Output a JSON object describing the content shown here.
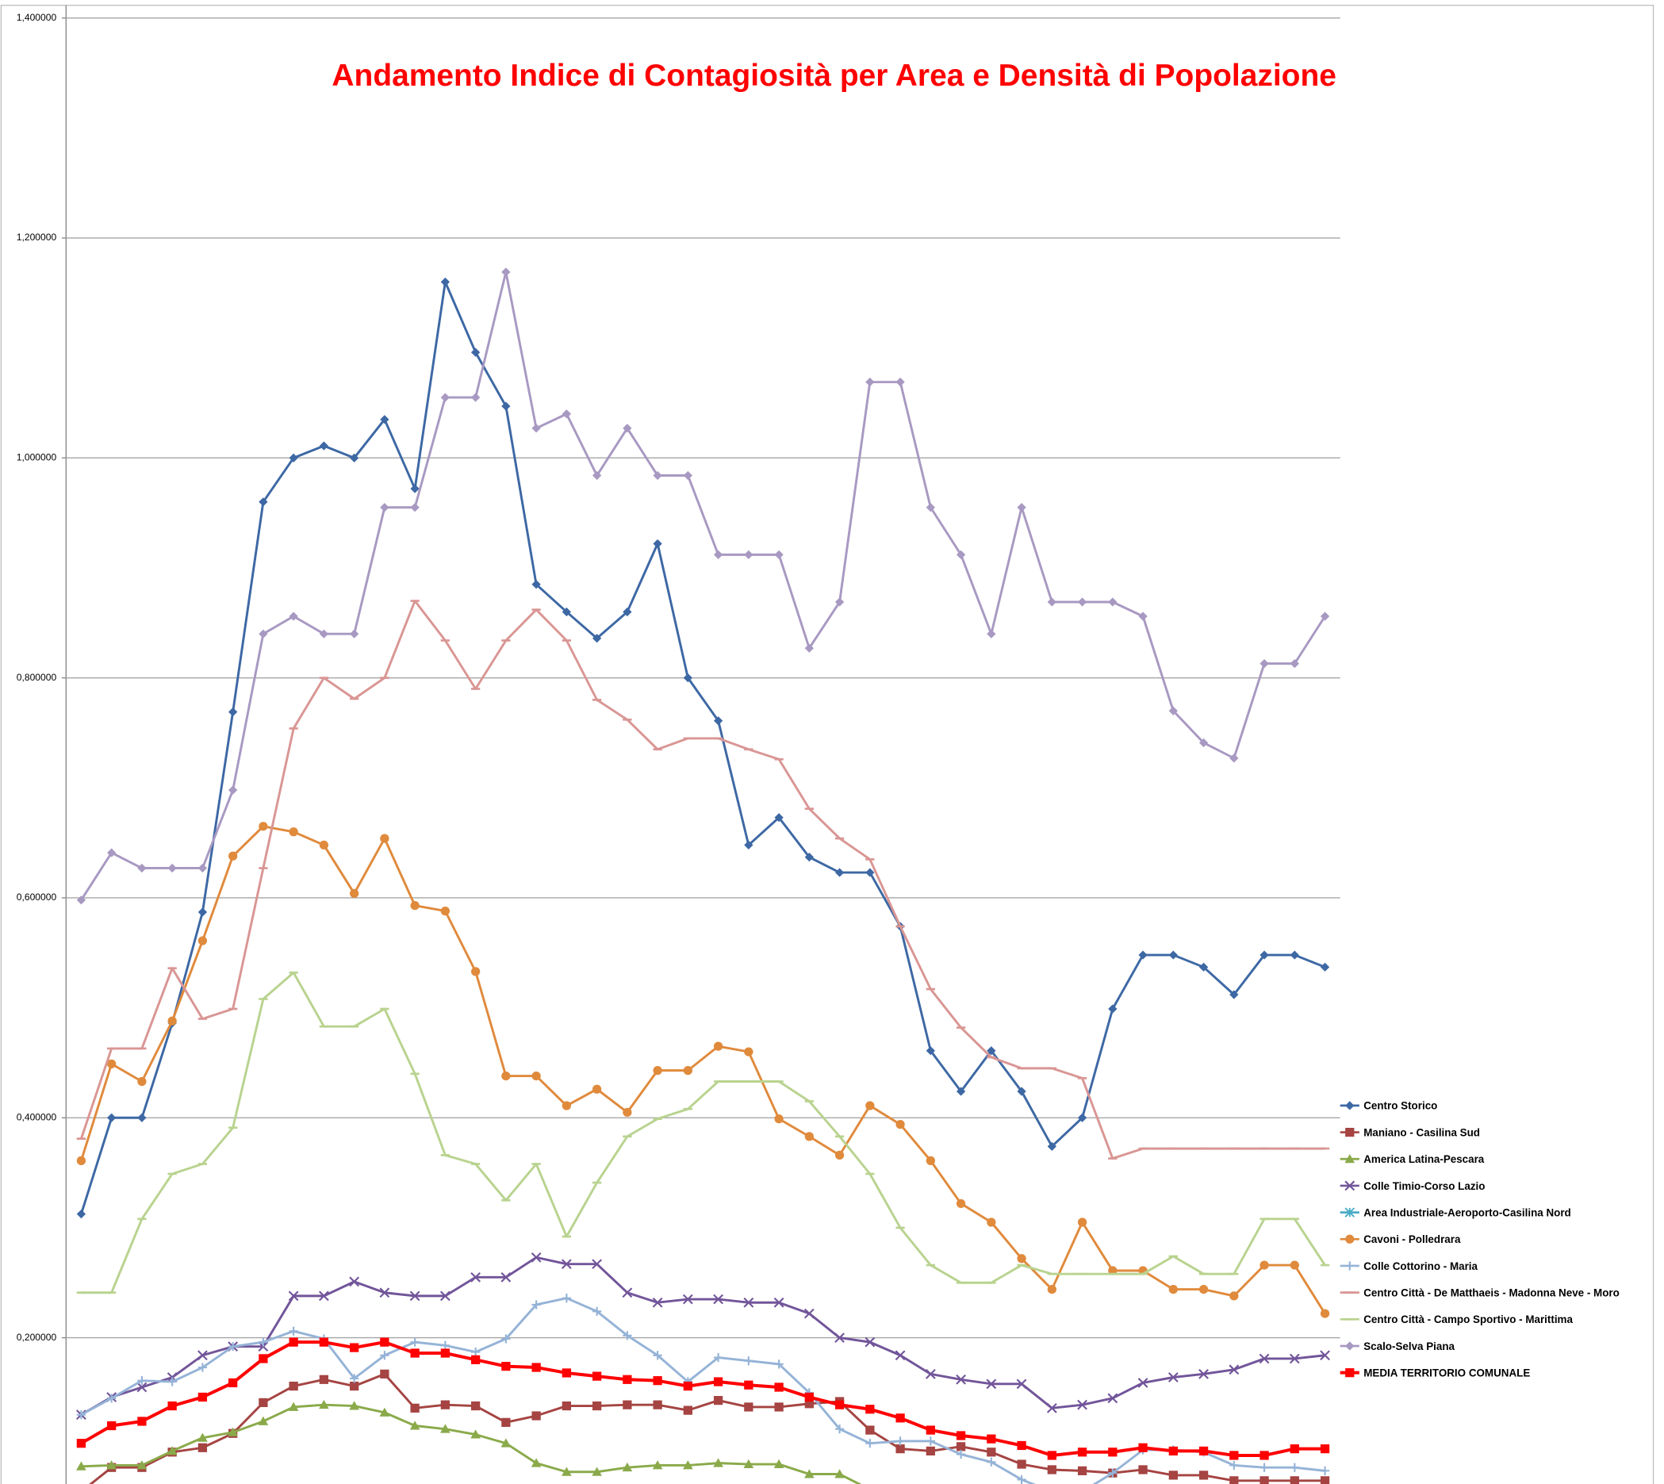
{
  "chart_data": {
    "type": "line",
    "title": "Andamento Indice di Contagiosità per Area e Densità di Popolazione",
    "categories": [
      null,
      null,
      null,
      null,
      null,
      null,
      null,
      null,
      null,
      null,
      null,
      null,
      null,
      null,
      null,
      null,
      null,
      null,
      null,
      null,
      null,
      null,
      null,
      null,
      null,
      null,
      null,
      null,
      null,
      null,
      null,
      null,
      null,
      null,
      null,
      null,
      null,
      null,
      null,
      null,
      null,
      null
    ],
    "ylim": [
      0.067,
      1.4
    ],
    "yticks": [
      {
        "value": 0.2,
        "label": "0,200000"
      },
      {
        "value": 0.4,
        "label": "0,400000"
      },
      {
        "value": 0.6,
        "label": "0,600000"
      },
      {
        "value": 0.8,
        "label": "0,800000"
      },
      {
        "value": 1.0,
        "label": "1,000000"
      },
      {
        "value": 1.2,
        "label": "1,200000"
      },
      {
        "value": 1.4,
        "label": "1,400000"
      }
    ],
    "grid": true,
    "legend": "right",
    "series": [
      {
        "name": "Centro Storico",
        "color": "#3d68a4",
        "marker": "diamond",
        "values": [
          0.3125,
          0.4,
          0.4,
          0.486,
          0.587,
          0.769,
          0.96,
          1.0,
          1.011,
          1.0,
          1.035,
          0.972,
          1.16,
          1.096,
          1.047,
          0.885,
          0.86,
          0.836,
          0.86,
          0.922,
          0.8,
          0.761,
          0.648,
          0.673,
          0.637,
          0.623,
          0.623,
          0.574,
          0.461,
          0.424,
          0.461,
          0.424,
          0.374,
          0.4,
          0.499,
          0.548,
          0.548,
          0.537,
          0.512,
          0.548,
          0.548,
          0.537
        ]
      },
      {
        "name": "Maniano - Casilina Sud",
        "color": "#a54442",
        "marker": "square",
        "values": [
          0.06,
          0.082,
          0.082,
          0.096,
          0.1,
          0.113,
          0.141,
          0.156,
          0.162,
          0.156,
          0.167,
          0.136,
          0.139,
          0.138,
          0.123,
          0.129,
          0.138,
          0.138,
          0.139,
          0.139,
          0.134,
          0.143,
          0.137,
          0.137,
          0.14,
          0.142,
          0.116,
          0.099,
          0.097,
          0.101,
          0.096,
          0.085,
          0.08,
          0.079,
          0.077,
          0.08,
          0.075,
          0.075,
          0.07,
          0.07,
          0.07,
          0.07
        ]
      },
      {
        "name": "America Latina-Pescara",
        "color": "#8aaa4a",
        "marker": "triangle",
        "values": [
          0.083,
          0.084,
          0.084,
          0.097,
          0.109,
          0.114,
          0.124,
          0.137,
          0.139,
          0.138,
          0.132,
          0.12,
          0.117,
          0.112,
          0.104,
          0.086,
          0.078,
          0.078,
          0.082,
          0.084,
          0.084,
          0.086,
          0.085,
          0.085,
          0.076,
          0.076,
          0.062,
          null,
          null,
          null,
          null,
          null,
          null,
          null,
          null,
          null,
          null,
          null,
          null,
          null,
          null,
          null
        ]
      },
      {
        "name": "Colle Timio-Corso Lazio",
        "color": "#72559a",
        "marker": "x",
        "values": [
          0.13,
          0.146,
          0.155,
          0.164,
          0.184,
          0.192,
          0.192,
          0.238,
          0.238,
          0.251,
          0.241,
          0.238,
          0.238,
          0.255,
          0.255,
          0.273,
          0.267,
          0.267,
          0.241,
          0.232,
          0.235,
          0.235,
          0.232,
          0.232,
          0.222,
          0.2,
          0.196,
          0.184,
          0.167,
          0.162,
          0.158,
          0.158,
          0.136,
          0.139,
          0.145,
          0.159,
          0.164,
          0.167,
          0.171,
          0.181,
          0.181,
          0.184
        ]
      },
      {
        "name": "Area Industriale-Aeroporto-Casilina Nord",
        "color": "#4aacc6",
        "marker": "star",
        "values": [
          null,
          null,
          null,
          null,
          null,
          null,
          null,
          null,
          null,
          null,
          null,
          null,
          null,
          null,
          null,
          null,
          null,
          null,
          null,
          null,
          null,
          null,
          null,
          null,
          null,
          null,
          null,
          null,
          null,
          null,
          null,
          null,
          null,
          null,
          null,
          null,
          null,
          null,
          null,
          null,
          null,
          null
        ]
      },
      {
        "name": "Cavoni - Polledrara",
        "color": "#e08a3c",
        "marker": "circle",
        "values": [
          0.361,
          0.449,
          0.433,
          0.488,
          0.561,
          0.638,
          0.665,
          0.66,
          0.648,
          0.604,
          0.654,
          0.593,
          0.588,
          0.533,
          0.438,
          0.438,
          0.411,
          0.426,
          0.405,
          0.443,
          0.443,
          0.465,
          0.46,
          0.399,
          0.383,
          0.366,
          0.411,
          0.394,
          0.361,
          0.322,
          0.305,
          0.272,
          0.244,
          0.305,
          0.261,
          0.261,
          0.244,
          0.244,
          0.238,
          0.266,
          0.266,
          0.222
        ]
      },
      {
        "name": "Colle Cottorino - Maria",
        "color": "#95b3d7",
        "marker": "plus",
        "values": [
          0.13,
          0.145,
          0.161,
          0.16,
          0.173,
          0.192,
          0.196,
          0.206,
          0.199,
          0.163,
          0.184,
          0.196,
          0.193,
          0.187,
          0.199,
          0.23,
          0.236,
          0.224,
          0.202,
          0.184,
          0.16,
          0.182,
          0.179,
          0.176,
          0.15,
          0.117,
          0.104,
          0.106,
          0.106,
          0.094,
          0.087,
          0.071,
          0.06,
          0.06,
          0.077,
          0.098,
          0.098,
          0.096,
          0.084,
          0.082,
          0.082,
          0.079
        ]
      },
      {
        "name": "Centro Città - De Matthaeis - Madonna Neve - Moro",
        "color": "#d99694",
        "marker": "dash",
        "values": [
          0.381,
          0.463,
          0.463,
          0.536,
          0.49,
          0.499,
          0.627,
          0.754,
          0.8,
          0.781,
          0.8,
          0.87,
          0.834,
          0.79,
          0.834,
          0.862,
          0.834,
          0.78,
          0.762,
          0.735,
          0.745,
          0.745,
          0.735,
          0.726,
          0.681,
          0.654,
          0.635,
          0.574,
          0.517,
          0.482,
          0.455,
          0.445,
          0.445,
          0.436,
          0.363,
          0.372,
          0.372,
          0.372,
          0.372,
          0.372,
          0.372,
          0.372
        ]
      },
      {
        "name": "Centro Città - Campo Sportivo - Marittima",
        "color": "#b9d38f",
        "marker": "dash",
        "values": [
          0.241,
          0.241,
          0.308,
          0.349,
          0.358,
          0.391,
          0.508,
          0.532,
          0.483,
          0.483,
          0.499,
          0.44,
          0.366,
          0.358,
          0.325,
          0.358,
          0.292,
          0.341,
          0.383,
          0.399,
          0.408,
          0.433,
          0.433,
          0.433,
          0.415,
          0.383,
          0.349,
          0.3,
          0.266,
          0.25,
          0.25,
          0.266,
          0.258,
          0.258,
          0.258,
          0.258,
          0.274,
          0.258,
          0.258,
          0.308,
          0.308,
          0.266
        ]
      },
      {
        "name": "Scalo-Selva Piana",
        "color": "#a899c2",
        "marker": "diamond",
        "values": [
          0.598,
          0.641,
          0.627,
          0.627,
          0.627,
          0.698,
          0.84,
          0.856,
          0.84,
          0.84,
          0.955,
          0.955,
          1.055,
          1.055,
          1.169,
          1.027,
          1.04,
          0.984,
          1.027,
          0.984,
          0.984,
          0.912,
          0.912,
          0.912,
          0.827,
          0.869,
          1.069,
          1.069,
          0.955,
          0.912,
          0.84,
          0.955,
          0.869,
          0.869,
          0.869,
          0.856,
          0.77,
          0.741,
          0.727,
          0.813,
          0.813,
          0.856
        ]
      },
      {
        "name": "MEDIA TERRITORIO COMUNALE",
        "color": "#ff0000",
        "marker": "square",
        "width": 3,
        "values": [
          0.104,
          0.12,
          0.124,
          0.138,
          0.146,
          0.159,
          0.181,
          0.196,
          0.196,
          0.191,
          0.196,
          0.186,
          0.186,
          0.18,
          0.174,
          0.173,
          0.168,
          0.165,
          0.162,
          0.161,
          0.156,
          0.16,
          0.157,
          0.155,
          0.146,
          0.139,
          0.135,
          0.127,
          0.116,
          0.111,
          0.108,
          0.102,
          0.093,
          0.096,
          0.096,
          0.1,
          0.097,
          0.097,
          0.093,
          0.093,
          0.099,
          0.099
        ]
      }
    ]
  }
}
